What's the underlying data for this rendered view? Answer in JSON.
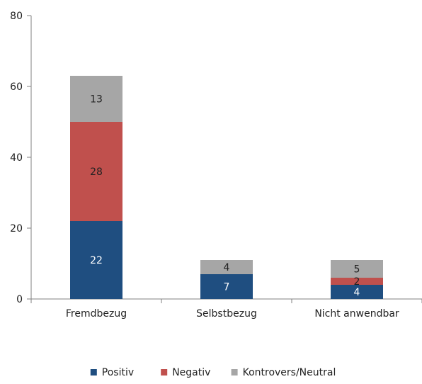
{
  "chart_data": {
    "type": "bar",
    "stacked": true,
    "categories": [
      "Fremdbezug",
      "Selbstbezug",
      "Nicht anwendbar"
    ],
    "series": [
      {
        "name": "Positiv",
        "color": "#1f4e80",
        "label_color": "#ffffff",
        "values": [
          22,
          7,
          4
        ]
      },
      {
        "name": "Negativ",
        "color": "#c0504d",
        "label_color": "#222222",
        "values": [
          28,
          0,
          2
        ]
      },
      {
        "name": "Kontrovers/Neutral",
        "color": "#a6a6a6",
        "label_color": "#222222",
        "values": [
          13,
          4,
          5
        ]
      }
    ],
    "yticks": [
      0,
      20,
      40,
      60,
      80
    ],
    "ylim": [
      0,
      80
    ],
    "grid": false,
    "legend": "bottom",
    "title": "",
    "xlabel": "",
    "ylabel": ""
  }
}
